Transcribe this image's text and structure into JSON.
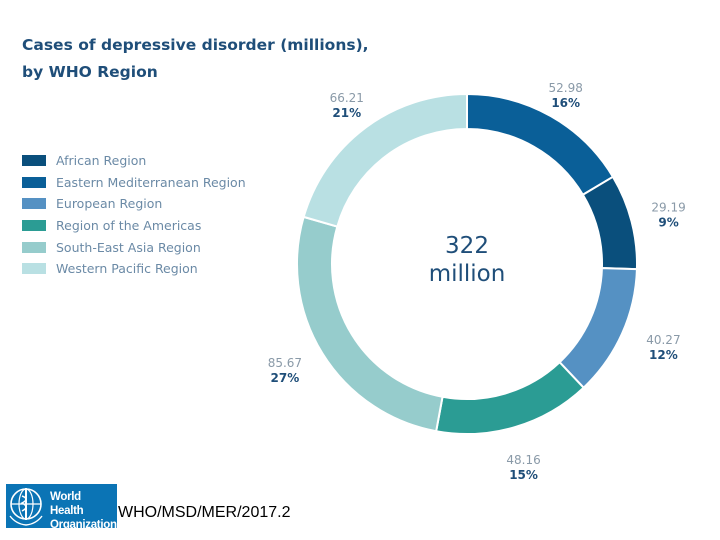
{
  "chart_data": {
    "type": "pie",
    "title_line1": "Cases of depressive disorder (millions),",
    "title_line2": "by WHO Region",
    "center_value": "322",
    "center_unit": "million",
    "slices": [
      {
        "label": "African Region",
        "value": 29.19,
        "value_text": "29.19",
        "percent_text": "9%",
        "color": "#0a4f7c"
      },
      {
        "label": "Eastern Mediterranean Region",
        "value": 52.98,
        "value_text": "52.98",
        "percent_text": "16%",
        "color": "#0a5f98"
      },
      {
        "label": "European Region",
        "value": 40.27,
        "value_text": "40.27",
        "percent_text": "12%",
        "color": "#5591c3"
      },
      {
        "label": "Region of the Americas",
        "value": 48.16,
        "value_text": "48.16",
        "percent_text": "15%",
        "color": "#2b9c94"
      },
      {
        "label": "South-East Asia Region",
        "value": 85.67,
        "value_text": "85.67",
        "percent_text": "27%",
        "color": "#96cccc"
      },
      {
        "label": "Western Pacific Region",
        "value": 66.21,
        "value_text": "66.21",
        "percent_text": "21%",
        "color": "#b9e0e3"
      }
    ],
    "draw_order": [
      "Eastern Mediterranean Region",
      "African Region",
      "European Region",
      "Region of the Americas",
      "South-East Asia Region",
      "Western Pacific Region"
    ],
    "legend_placement": "left"
  },
  "footer": {
    "logo_line1": "World Health",
    "logo_line2": "Organization",
    "document_code": "WHO/MSD/MER/2017.2"
  },
  "colors": {
    "title": "#1f4e79",
    "value_label": "#8a9aa8",
    "percent_label": "#1f4e79",
    "logo_bg": "#0b74b5"
  }
}
